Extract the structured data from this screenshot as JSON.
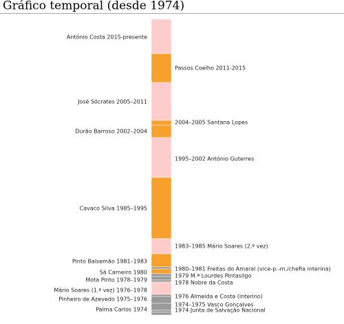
{
  "title": "Gráfico temporal (desde 1974)",
  "segments": [
    {
      "label": "António Costa 2015-presente",
      "color": "#ffcccc"
    },
    {
      "label": "Passos Coelho 2011-2015",
      "color": "#f7a12c"
    },
    {
      "label": "José Sócrates 2005–2011",
      "color": "#ffcccc"
    },
    {
      "label": "2004–2005 Santana Lopes",
      "color": "#f7a12c"
    },
    {
      "label": "Durão Barroso 2002–2004",
      "color": "#f7a12c"
    },
    {
      "label": "1995–2002 António Guterres",
      "color": "#ffcccc"
    },
    {
      "label": "Cavaco Silva 1985–1995",
      "color": "#f7a12c"
    },
    {
      "label": "1983–1985 Mário Soares (2.º vez)",
      "color": "#ffcccc"
    },
    {
      "label": "Pinto Balsemão 1981–1983",
      "color": "#f7a12c"
    },
    {
      "label": "1980–1981 Freitas do Amaral (vice-p.-m./chefia interina)",
      "color": "#999999"
    },
    {
      "label": "Sá Carneiro 1980",
      "color": "#f7a12c"
    },
    {
      "label": "1979 M.ª Lourdes Pintasilgo",
      "color": "#999999"
    },
    {
      "label": "Mota Pinto 1978–1979",
      "color": "#999999"
    },
    {
      "label": "1978 Nobre da Costa",
      "color": "#999999"
    },
    {
      "label": "Mário Soares (1.º vez) 1976–1978",
      "color": "#ffcccc"
    },
    {
      "label": "1976 Almeida e Costa (interino)",
      "color": "#999999"
    },
    {
      "label": "Pinheiro de Azevedo 1975–1976",
      "color": "#999999"
    },
    {
      "label": "1974–1975 Vasco Gonçalves",
      "color": "#999999"
    },
    {
      "label": "Palma Carlos 1974",
      "color": "#999999"
    },
    {
      "label": "1974 Junta de Salvação Nacional",
      "color": "#999999"
    }
  ]
}
